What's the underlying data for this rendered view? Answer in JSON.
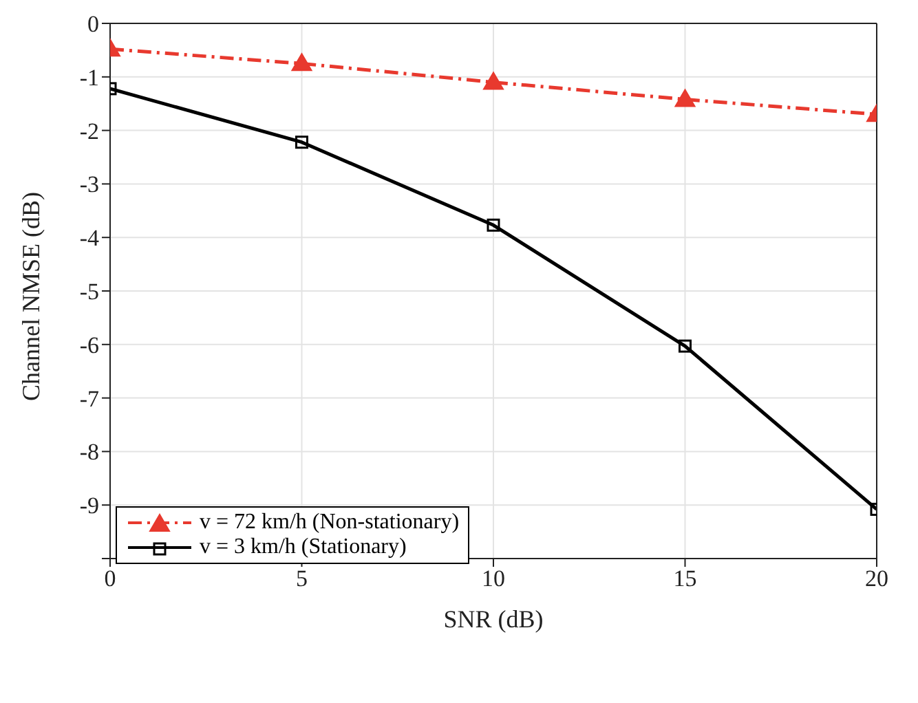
{
  "chart_data": {
    "type": "line",
    "xlabel": "SNR (dB)",
    "ylabel": "Channel NMSE (dB)",
    "x": [
      0,
      5,
      10,
      15,
      20
    ],
    "series": [
      {
        "name": "v = 72 km/h (Non-stationary)",
        "color": "#e8392e",
        "values": [
          -0.48,
          -0.75,
          -1.1,
          -1.42,
          -1.7
        ],
        "marker": "triangle",
        "line_style": "dashed"
      },
      {
        "name": "v = 3 km/h (Stationary)",
        "color": "#000000",
        "values": [
          -1.22,
          -2.22,
          -3.77,
          -6.03,
          -9.08
        ],
        "marker": "square",
        "line_style": "solid"
      }
    ],
    "xlim": [
      0,
      20
    ],
    "xticks": [
      0,
      5,
      10,
      15,
      20
    ],
    "ylim": [
      -10,
      0
    ],
    "yticks": [
      0,
      -1,
      -2,
      -3,
      -4,
      -5,
      -6,
      -7,
      -8,
      -9,
      {
        "value": -10,
        "label": null
      }
    ],
    "grid": true,
    "legend": "bottom left"
  }
}
